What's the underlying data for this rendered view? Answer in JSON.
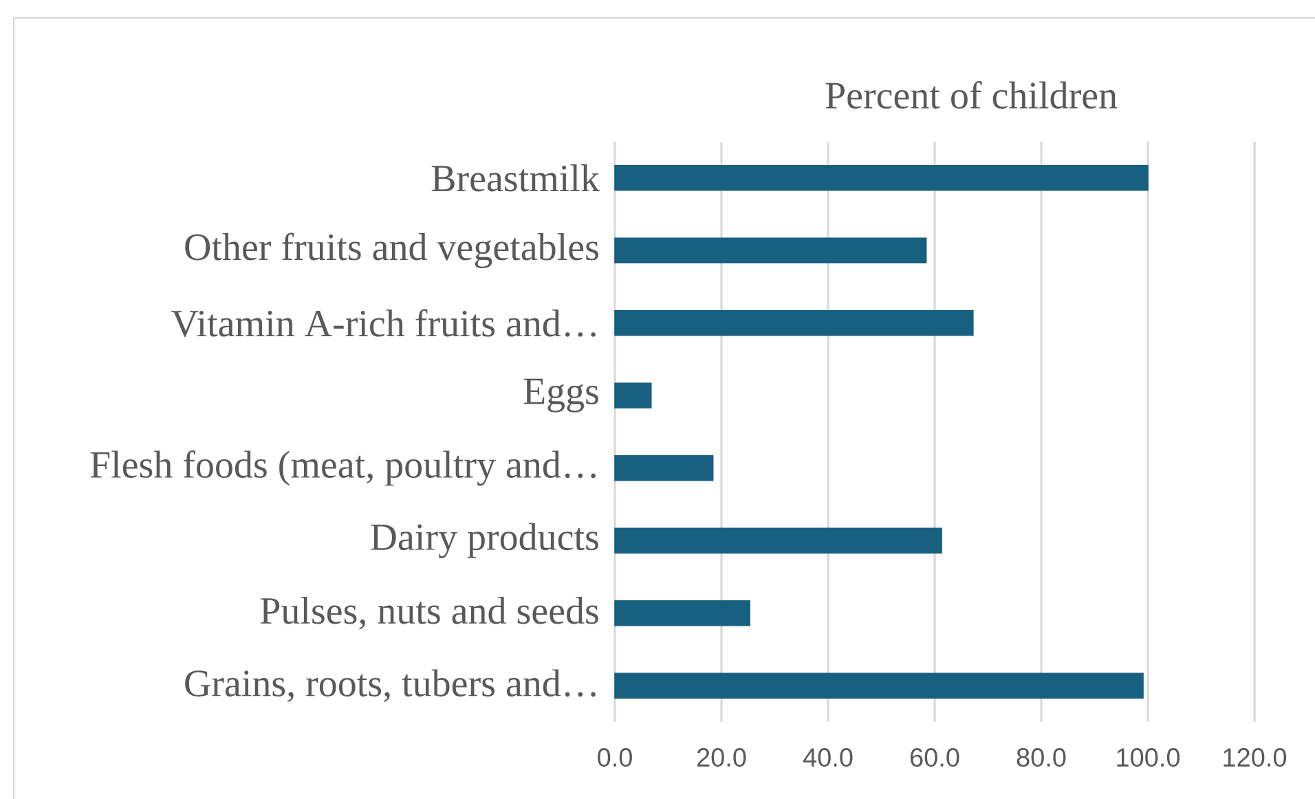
{
  "chart_data": {
    "type": "bar",
    "orientation": "horizontal",
    "title": "Percent of children",
    "categories": [
      "Breastmilk",
      "Other fruits and vegetables",
      "Vitamin A-rich fruits and…",
      "Eggs",
      "Flesh foods (meat, poultry and…",
      "Dairy products",
      "Pulses, nuts and seeds",
      "Grains, roots, tubers and…"
    ],
    "values": [
      100,
      58.4,
      67.2,
      6.8,
      18.4,
      61.3,
      25.3,
      99.1
    ],
    "color": "#17607f",
    "xlim": [
      0,
      120
    ],
    "xticks": [
      {
        "value": 0,
        "label": "0.0"
      },
      {
        "value": 20,
        "label": "20.0"
      },
      {
        "value": 40,
        "label": "40.0"
      },
      {
        "value": 60,
        "label": "60.0"
      },
      {
        "value": 80,
        "label": "80.0"
      },
      {
        "value": 100,
        "label": "100.0"
      },
      {
        "value": 120,
        "label": "120.0"
      }
    ],
    "grid": "x"
  }
}
